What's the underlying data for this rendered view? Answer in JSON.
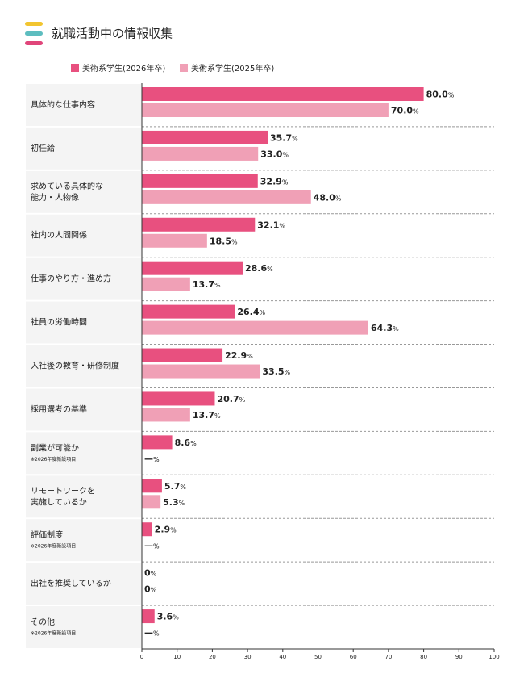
{
  "chart_data": {
    "type": "hbar",
    "title": "就職活動中の情報収集",
    "categories": [
      "具体的な仕事内容",
      "初任給",
      "求めている具体的な\n能力・人物像",
      "社内の人間関係",
      "仕事のやり方・進め方",
      "社員の労働時間",
      "入社後の教育・研修制度",
      "採用選考の基準",
      "副業が可能か",
      "リモートワークを\n実施しているか",
      "評価制度",
      "出社を推奨しているか",
      "その他"
    ],
    "notes": [
      null,
      null,
      null,
      null,
      null,
      null,
      null,
      null,
      "※2026年度新設項目",
      null,
      "※2026年度新設項目",
      null,
      "※2026年度新設項目"
    ],
    "series": [
      {
        "name": "美術系学生(2026年卒)",
        "color": "#e8507f",
        "label_color": "#111111",
        "values": [
          80.0,
          35.7,
          32.9,
          32.1,
          28.6,
          26.4,
          22.9,
          20.7,
          8.6,
          5.7,
          2.9,
          0,
          3.6
        ],
        "value_labels": [
          "80.0%",
          "35.7%",
          "32.9%",
          "32.1%",
          "28.6%",
          "26.4%",
          "22.9%",
          "20.7%",
          "8.6%",
          "5.7%",
          "2.9%",
          "0%",
          "3.6%"
        ]
      },
      {
        "name": "美術系学生(2025年卒)",
        "color": "#f0a0b6",
        "label_color": "#ec86a6",
        "values": [
          70.0,
          33.0,
          48.0,
          18.5,
          13.7,
          64.3,
          33.5,
          13.7,
          null,
          5.3,
          null,
          0,
          null
        ],
        "value_labels": [
          "70.0%",
          "33.0%",
          "48.0%",
          "18.5%",
          "13.7%",
          "64.3%",
          "33.5%",
          "13.7%",
          "—%",
          "5.3%",
          "—%",
          "0%",
          "—%"
        ]
      }
    ],
    "xlim": [
      0,
      100
    ],
    "xticks": [
      0,
      10,
      20,
      30,
      40,
      50,
      60,
      70,
      80,
      90,
      100
    ]
  }
}
